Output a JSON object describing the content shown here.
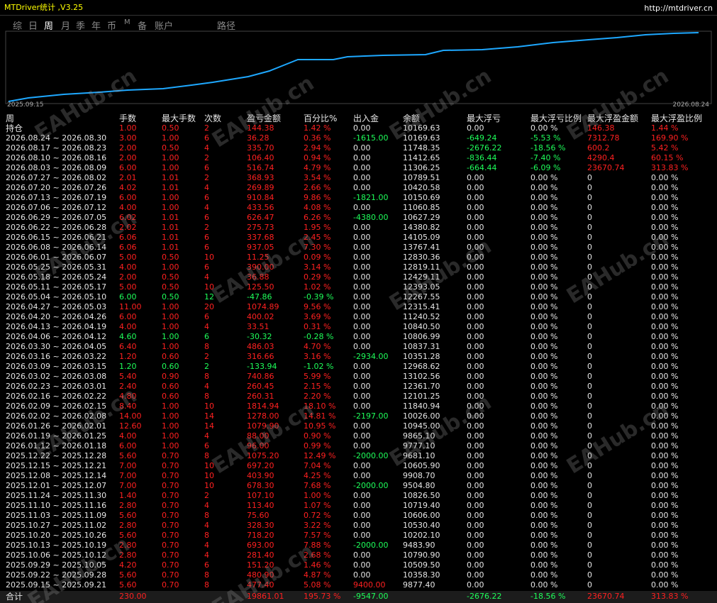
{
  "header": {
    "title": "MTDriver统计 ,V3.25",
    "url": "http://mtdriver.cn"
  },
  "tabs": [
    "综",
    "日",
    "周",
    "月",
    "季",
    "年",
    "币",
    "M",
    "备",
    "账户",
    "路径"
  ],
  "chart": {
    "start_label": "2025.09.15",
    "end_label": "2026.08.24"
  },
  "watermark": "EAHub.cn",
  "table": {
    "columns": [
      "周",
      "手数",
      "最大手数",
      "次数",
      "盈亏金额",
      "百分比%",
      "出入金",
      "余额",
      "最大浮亏",
      "最大浮亏比例",
      "最大浮盈金额",
      "最大浮盈比例"
    ],
    "rows": [
      [
        "持仓",
        "1.00",
        "0.50",
        "2",
        "144.38",
        "1.42 %",
        "0.00",
        "10169.63",
        "0.00",
        "0.00 %",
        "146.38",
        "1.44 %"
      ],
      [
        "2026.08.24 ~ 2026.08.30",
        "3.00",
        "1.00",
        "6",
        "36.28",
        "0.36 %",
        "-1615.00",
        "10169.63",
        "-649.24",
        "-5.53 %",
        "7312.78",
        "169.90 %"
      ],
      [
        "2026.08.17 ~ 2026.08.23",
        "2.00",
        "0.50",
        "4",
        "335.70",
        "2.94 %",
        "0.00",
        "11748.35",
        "-2676.22",
        "-18.56 %",
        "600.2",
        "5.42 %"
      ],
      [
        "2026.08.10 ~ 2026.08.16",
        "2.00",
        "1.00",
        "2",
        "106.40",
        "0.94 %",
        "0.00",
        "11412.65",
        "-836.44",
        "-7.40 %",
        "4290.4",
        "60.15 %"
      ],
      [
        "2026.08.03 ~ 2026.08.09",
        "6.00",
        "1.00",
        "6",
        "516.74",
        "4.79 %",
        "0.00",
        "11306.25",
        "-664.44",
        "-6.09 %",
        "23670.74",
        "313.83 %"
      ],
      [
        "2026.07.27 ~ 2026.08.02",
        "2.01",
        "1.01",
        "2",
        "368.93",
        "3.54 %",
        "0.00",
        "10789.51",
        "0.00",
        "0.00 %",
        "0",
        "0.00 %"
      ],
      [
        "2026.07.20 ~ 2026.07.26",
        "4.02",
        "1.01",
        "4",
        "269.89",
        "2.66 %",
        "0.00",
        "10420.58",
        "0.00",
        "0.00 %",
        "0",
        "0.00 %"
      ],
      [
        "2026.07.13 ~ 2026.07.19",
        "6.00",
        "1.00",
        "6",
        "910.84",
        "9.86 %",
        "-1821.00",
        "10150.69",
        "0.00",
        "0.00 %",
        "0",
        "0.00 %"
      ],
      [
        "2026.07.06 ~ 2026.07.12",
        "4.00",
        "1.00",
        "4",
        "433.56",
        "4.08 %",
        "0.00",
        "11060.85",
        "0.00",
        "0.00 %",
        "0",
        "0.00 %"
      ],
      [
        "2026.06.29 ~ 2026.07.05",
        "6.02",
        "1.01",
        "6",
        "626.47",
        "6.26 %",
        "-4380.00",
        "10627.29",
        "0.00",
        "0.00 %",
        "0",
        "0.00 %"
      ],
      [
        "2026.06.22 ~ 2026.06.28",
        "2.02",
        "1.01",
        "2",
        "275.73",
        "1.95 %",
        "0.00",
        "14380.82",
        "0.00",
        "0.00 %",
        "0",
        "0.00 %"
      ],
      [
        "2026.06.15 ~ 2026.06.21",
        "6.06",
        "1.01",
        "6",
        "337.68",
        "2.45 %",
        "0.00",
        "14105.09",
        "0.00",
        "0.00 %",
        "0",
        "0.00 %"
      ],
      [
        "2026.06.08 ~ 2026.06.14",
        "6.06",
        "1.01",
        "6",
        "937.05",
        "7.30 %",
        "0.00",
        "13767.41",
        "0.00",
        "0.00 %",
        "0",
        "0.00 %"
      ],
      [
        "2026.06.01 ~ 2026.06.07",
        "5.00",
        "0.50",
        "10",
        "11.25",
        "0.09 %",
        "0.00",
        "12830.36",
        "0.00",
        "0.00 %",
        "0",
        "0.00 %"
      ],
      [
        "2026.05.25 ~ 2026.05.31",
        "4.00",
        "1.00",
        "6",
        "390.00",
        "3.14 %",
        "0.00",
        "12819.11",
        "0.00",
        "0.00 %",
        "0",
        "0.00 %"
      ],
      [
        "2026.05.18 ~ 2026.05.24",
        "2.00",
        "0.50",
        "4",
        "36.88",
        "0.29 %",
        "0.00",
        "12429.11",
        "0.00",
        "0.00 %",
        "0",
        "0.00 %"
      ],
      [
        "2026.05.11 ~ 2026.05.17",
        "5.00",
        "0.50",
        "10",
        "125.50",
        "1.02 %",
        "0.00",
        "12393.05",
        "0.00",
        "0.00 %",
        "0",
        "0.00 %"
      ],
      [
        "2026.05.04 ~ 2026.05.10",
        "6.00",
        "0.50",
        "12",
        "-47.86",
        "-0.39 %",
        "0.00",
        "12267.55",
        "0.00",
        "0.00 %",
        "0",
        "0.00 %"
      ],
      [
        "2026.04.27 ~ 2026.05.03",
        "11.00",
        "1.00",
        "20",
        "1074.89",
        "9.56 %",
        "0.00",
        "12315.41",
        "0.00",
        "0.00 %",
        "0",
        "0.00 %"
      ],
      [
        "2026.04.20 ~ 2026.04.26",
        "6.00",
        "1.00",
        "6",
        "400.02",
        "3.69 %",
        "0.00",
        "11240.52",
        "0.00",
        "0.00 %",
        "0",
        "0.00 %"
      ],
      [
        "2026.04.13 ~ 2026.04.19",
        "4.00",
        "1.00",
        "4",
        "33.51",
        "0.31 %",
        "0.00",
        "10840.50",
        "0.00",
        "0.00 %",
        "0",
        "0.00 %"
      ],
      [
        "2026.04.06 ~ 2026.04.12",
        "4.60",
        "1.00",
        "6",
        "-30.32",
        "-0.28 %",
        "0.00",
        "10806.99",
        "0.00",
        "0.00 %",
        "0",
        "0.00 %"
      ],
      [
        "2026.03.30 ~ 2026.04.05",
        "6.40",
        "1.00",
        "8",
        "486.03",
        "4.70 %",
        "0.00",
        "10837.31",
        "0.00",
        "0.00 %",
        "0",
        "0.00 %"
      ],
      [
        "2026.03.16 ~ 2026.03.22",
        "1.20",
        "0.60",
        "2",
        "316.66",
        "3.16 %",
        "-2934.00",
        "10351.28",
        "0.00",
        "0.00 %",
        "0",
        "0.00 %"
      ],
      [
        "2026.03.09 ~ 2026.03.15",
        "1.20",
        "0.60",
        "2",
        "-133.94",
        "-1.02 %",
        "0.00",
        "12968.62",
        "0.00",
        "0.00 %",
        "0",
        "0.00 %"
      ],
      [
        "2026.03.02 ~ 2026.03.08",
        "5.40",
        "0.90",
        "8",
        "740.86",
        "5.99 %",
        "0.00",
        "13102.56",
        "0.00",
        "0.00 %",
        "0",
        "0.00 %"
      ],
      [
        "2026.02.23 ~ 2026.03.01",
        "2.40",
        "0.60",
        "4",
        "260.45",
        "2.15 %",
        "0.00",
        "12361.70",
        "0.00",
        "0.00 %",
        "0",
        "0.00 %"
      ],
      [
        "2026.02.16 ~ 2026.02.22",
        "4.80",
        "0.60",
        "8",
        "260.31",
        "2.20 %",
        "0.00",
        "12101.25",
        "0.00",
        "0.00 %",
        "0",
        "0.00 %"
      ],
      [
        "2026.02.09 ~ 2026.02.15",
        "8.40",
        "1.00",
        "10",
        "1814.94",
        "18.10 %",
        "0.00",
        "11840.94",
        "0.00",
        "0.00 %",
        "0",
        "0.00 %"
      ],
      [
        "2026.02.02 ~ 2026.02.08",
        "14.00",
        "1.00",
        "14",
        "1278.00",
        "14.81 %",
        "-2197.00",
        "10026.00",
        "0.00",
        "0.00 %",
        "0",
        "0.00 %"
      ],
      [
        "2026.01.26 ~ 2026.02.01",
        "12.60",
        "1.00",
        "14",
        "1079.90",
        "10.95 %",
        "0.00",
        "10945.00",
        "0.00",
        "0.00 %",
        "0",
        "0.00 %"
      ],
      [
        "2026.01.19 ~ 2026.01.25",
        "4.00",
        "1.00",
        "4",
        "88.00",
        "0.90 %",
        "0.00",
        "9865.10",
        "0.00",
        "0.00 %",
        "0",
        "0.00 %"
      ],
      [
        "2026.01.12 ~ 2026.01.18",
        "6.00",
        "1.00",
        "6",
        "96.00",
        "0.99 %",
        "0.00",
        "9777.10",
        "0.00",
        "0.00 %",
        "0",
        "0.00 %"
      ],
      [
        "2025.12.22 ~ 2025.12.28",
        "5.60",
        "0.70",
        "8",
        "1075.20",
        "12.49 %",
        "-2000.00",
        "9681.10",
        "0.00",
        "0.00 %",
        "0",
        "0.00 %"
      ],
      [
        "2025.12.15 ~ 2025.12.21",
        "7.00",
        "0.70",
        "10",
        "697.20",
        "7.04 %",
        "0.00",
        "10605.90",
        "0.00",
        "0.00 %",
        "0",
        "0.00 %"
      ],
      [
        "2025.12.08 ~ 2025.12.14",
        "7.00",
        "0.70",
        "10",
        "403.90",
        "4.25 %",
        "0.00",
        "9908.70",
        "0.00",
        "0.00 %",
        "0",
        "0.00 %"
      ],
      [
        "2025.12.01 ~ 2025.12.07",
        "7.00",
        "0.70",
        "10",
        "678.30",
        "7.68 %",
        "-2000.00",
        "9504.80",
        "0.00",
        "0.00 %",
        "0",
        "0.00 %"
      ],
      [
        "2025.11.24 ~ 2025.11.30",
        "1.40",
        "0.70",
        "2",
        "107.10",
        "1.00 %",
        "0.00",
        "10826.50",
        "0.00",
        "0.00 %",
        "0",
        "0.00 %"
      ],
      [
        "2025.11.10 ~ 2025.11.16",
        "2.80",
        "0.70",
        "4",
        "113.40",
        "1.07 %",
        "0.00",
        "10719.40",
        "0.00",
        "0.00 %",
        "0",
        "0.00 %"
      ],
      [
        "2025.11.03 ~ 2025.11.09",
        "5.60",
        "0.70",
        "8",
        "75.60",
        "0.72 %",
        "0.00",
        "10606.00",
        "0.00",
        "0.00 %",
        "0",
        "0.00 %"
      ],
      [
        "2025.10.27 ~ 2025.11.02",
        "2.80",
        "0.70",
        "4",
        "328.30",
        "3.22 %",
        "0.00",
        "10530.40",
        "0.00",
        "0.00 %",
        "0",
        "0.00 %"
      ],
      [
        "2025.10.20 ~ 2025.10.26",
        "5.60",
        "0.70",
        "8",
        "718.20",
        "7.57 %",
        "0.00",
        "10202.10",
        "0.00",
        "0.00 %",
        "0",
        "0.00 %"
      ],
      [
        "2025.10.13 ~ 2025.10.19",
        "2.80",
        "0.70",
        "4",
        "693.00",
        "7.88 %",
        "-2000.00",
        "9483.90",
        "0.00",
        "0.00 %",
        "0",
        "0.00 %"
      ],
      [
        "2025.10.06 ~ 2025.10.12",
        "2.80",
        "0.70",
        "4",
        "281.40",
        "2.68 %",
        "0.00",
        "10790.90",
        "0.00",
        "0.00 %",
        "0",
        "0.00 %"
      ],
      [
        "2025.09.29 ~ 2025.10.05",
        "4.20",
        "0.70",
        "6",
        "151.20",
        "1.46 %",
        "0.00",
        "10509.50",
        "0.00",
        "0.00 %",
        "0",
        "0.00 %"
      ],
      [
        "2025.09.22 ~ 2025.09.28",
        "5.60",
        "0.70",
        "8",
        "480.90",
        "4.87 %",
        "0.00",
        "10358.30",
        "0.00",
        "0.00 %",
        "0",
        "0.00 %"
      ],
      [
        "2025.09.15 ~ 2025.09.21",
        "5.60",
        "0.70",
        "8",
        "477.40",
        "5.08 %",
        "9400.00",
        "9877.40",
        "0.00",
        "0.00 %",
        "0",
        "0.00 %"
      ]
    ],
    "total": [
      "合计",
      "230.00",
      null,
      null,
      "19861.01",
      "195.73 %",
      "-9547.00",
      null,
      "-2676.22",
      "-18.56 %",
      "23670.74",
      "313.83 %"
    ]
  }
}
